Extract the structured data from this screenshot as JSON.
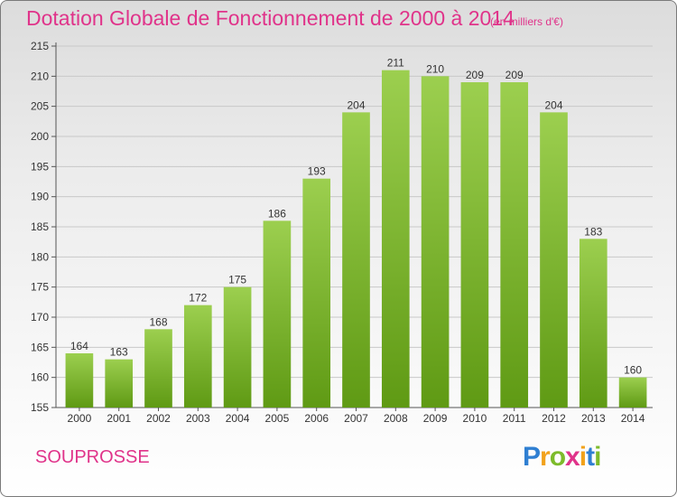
{
  "header": {
    "title": "Dotation Globale de Fonctionnement de 2000 à 2014",
    "subtitle": "(en milliers d'€)"
  },
  "footer": {
    "commune": "SOUPROSSE",
    "logo_letters": [
      "P",
      "r",
      "o",
      "x",
      "i",
      "t",
      "i"
    ]
  },
  "colors": {
    "title": "#e0338a",
    "bar_top": "#9ccf4f",
    "bar_bottom": "#5f9a14",
    "grid": "#c8c8c8",
    "logo": [
      "#2f7fd2",
      "#f2a21b",
      "#7dbb2b",
      "#e0338a",
      "#f2a21b",
      "#2f7fd2",
      "#7dbb2b"
    ]
  },
  "chart_data": {
    "type": "bar",
    "title": "Dotation Globale de Fonctionnement de 2000 à 2014",
    "subtitle": "(en milliers d'€)",
    "xlabel": "",
    "ylabel": "",
    "categories": [
      "2000",
      "2001",
      "2002",
      "2003",
      "2004",
      "2005",
      "2006",
      "2007",
      "2008",
      "2009",
      "2010",
      "2011",
      "2012",
      "2013",
      "2014"
    ],
    "values": [
      164,
      163,
      168,
      172,
      175,
      186,
      193,
      204,
      211,
      210,
      209,
      209,
      204,
      183,
      160
    ],
    "ylim": [
      155,
      215
    ],
    "yticks": [
      "155",
      "160",
      "165",
      "170",
      "175",
      "180",
      "185",
      "190",
      "195",
      "200",
      "205",
      "210",
      "215"
    ],
    "grid": true,
    "legend": "none"
  }
}
